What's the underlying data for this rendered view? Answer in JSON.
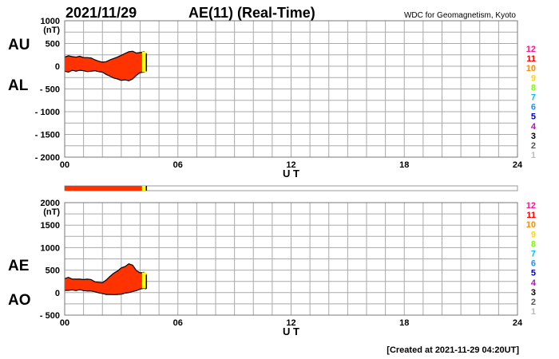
{
  "header": {
    "date": "2021/11/29",
    "title": "AE(11) (Real-Time)",
    "credit": "WDC for Geomagnetism, Kyoto"
  },
  "footer": {
    "created": "[Created at 2021-11-29 04:20UT]"
  },
  "colors": {
    "fill": "#ff3300",
    "current": "#ffff00",
    "outline": "#000000",
    "grid": "#aaaaaa",
    "coverage_fill": "#ff3300"
  },
  "stations": {
    "labels": [
      "12",
      "11",
      "10",
      "9",
      "8",
      "7",
      "6",
      "5",
      "4",
      "3",
      "2",
      "1"
    ],
    "colors": [
      "#ff1493",
      "#ff0000",
      "#ff8c00",
      "#ffd700",
      "#7fff00",
      "#00bfff",
      "#1e90ff",
      "#0000cd",
      "#cc00cc",
      "#000000",
      "#555555",
      "#bbbbbb"
    ]
  },
  "coverage": {
    "start_hour": 0,
    "end_hour": 4.33,
    "current_hour": 4.1
  },
  "chart_data": [
    {
      "type": "area",
      "panel": "AU/AL",
      "side_labels": [
        "AU",
        "AL"
      ],
      "unit": "(nT)",
      "xlabel": "U T",
      "xlim": [
        0,
        24
      ],
      "x_ticks": [
        "00",
        "06",
        "12",
        "18",
        "24"
      ],
      "x_tick_values": [
        0,
        6,
        12,
        18,
        24
      ],
      "ylim": [
        -2000,
        1000
      ],
      "y_ticks": [
        "1000",
        "500",
        "0",
        "- 500",
        "- 1000",
        "- 1500",
        "- 2000"
      ],
      "y_tick_values": [
        1000,
        500,
        0,
        -500,
        -1000,
        -1500,
        -2000
      ],
      "grid": true,
      "series": [
        {
          "name": "AU",
          "x": [
            0.0,
            0.2,
            0.4,
            0.6,
            0.8,
            1.0,
            1.2,
            1.4,
            1.6,
            1.8,
            2.0,
            2.2,
            2.4,
            2.6,
            2.8,
            3.0,
            3.2,
            3.4,
            3.6,
            3.8,
            4.0,
            4.2,
            4.33
          ],
          "values": [
            200,
            230,
            210,
            200,
            220,
            190,
            190,
            180,
            140,
            110,
            90,
            100,
            140,
            170,
            200,
            240,
            280,
            320,
            330,
            290,
            300,
            320,
            280
          ]
        },
        {
          "name": "AL",
          "x": [
            0.0,
            0.2,
            0.4,
            0.6,
            0.8,
            1.0,
            1.2,
            1.4,
            1.6,
            1.8,
            2.0,
            2.2,
            2.4,
            2.6,
            2.8,
            3.0,
            3.2,
            3.4,
            3.6,
            3.8,
            4.0,
            4.2,
            4.33
          ],
          "values": [
            -110,
            -130,
            -90,
            -110,
            -90,
            -100,
            -120,
            -110,
            -100,
            -120,
            -130,
            -180,
            -220,
            -260,
            -280,
            -310,
            -300,
            -320,
            -280,
            -200,
            -140,
            -130,
            -110
          ]
        }
      ]
    },
    {
      "type": "area",
      "panel": "AE/AO",
      "side_labels": [
        "AE",
        "AO"
      ],
      "unit": "(nT)",
      "xlabel": "U T",
      "xlim": [
        0,
        24
      ],
      "x_ticks": [
        "00",
        "06",
        "12",
        "18",
        "24"
      ],
      "x_tick_values": [
        0,
        6,
        12,
        18,
        24
      ],
      "ylim": [
        -500,
        2000
      ],
      "y_ticks": [
        "2000",
        "1500",
        "1000",
        "500",
        "0",
        "- 500"
      ],
      "y_tick_values": [
        2000,
        1500,
        1000,
        500,
        0,
        -500
      ],
      "grid": true,
      "series": [
        {
          "name": "AE",
          "x": [
            0.0,
            0.2,
            0.4,
            0.6,
            0.8,
            1.0,
            1.2,
            1.4,
            1.6,
            1.8,
            2.0,
            2.2,
            2.4,
            2.6,
            2.8,
            3.0,
            3.2,
            3.4,
            3.6,
            3.8,
            4.0,
            4.2,
            4.33
          ],
          "values": [
            310,
            340,
            300,
            300,
            300,
            290,
            300,
            290,
            240,
            230,
            220,
            280,
            360,
            430,
            480,
            550,
            580,
            640,
            610,
            490,
            440,
            450,
            400
          ]
        },
        {
          "name": "AO",
          "x": [
            0.0,
            0.2,
            0.4,
            0.6,
            0.8,
            1.0,
            1.2,
            1.4,
            1.6,
            1.8,
            2.0,
            2.2,
            2.4,
            2.6,
            2.8,
            3.0,
            3.2,
            3.4,
            3.6,
            3.8,
            4.0,
            4.2,
            4.33
          ],
          "values": [
            50,
            50,
            60,
            45,
            65,
            45,
            35,
            35,
            20,
            -5,
            -20,
            -40,
            -40,
            -45,
            -40,
            -35,
            -10,
            0,
            25,
            45,
            80,
            95,
            85
          ]
        }
      ]
    }
  ]
}
